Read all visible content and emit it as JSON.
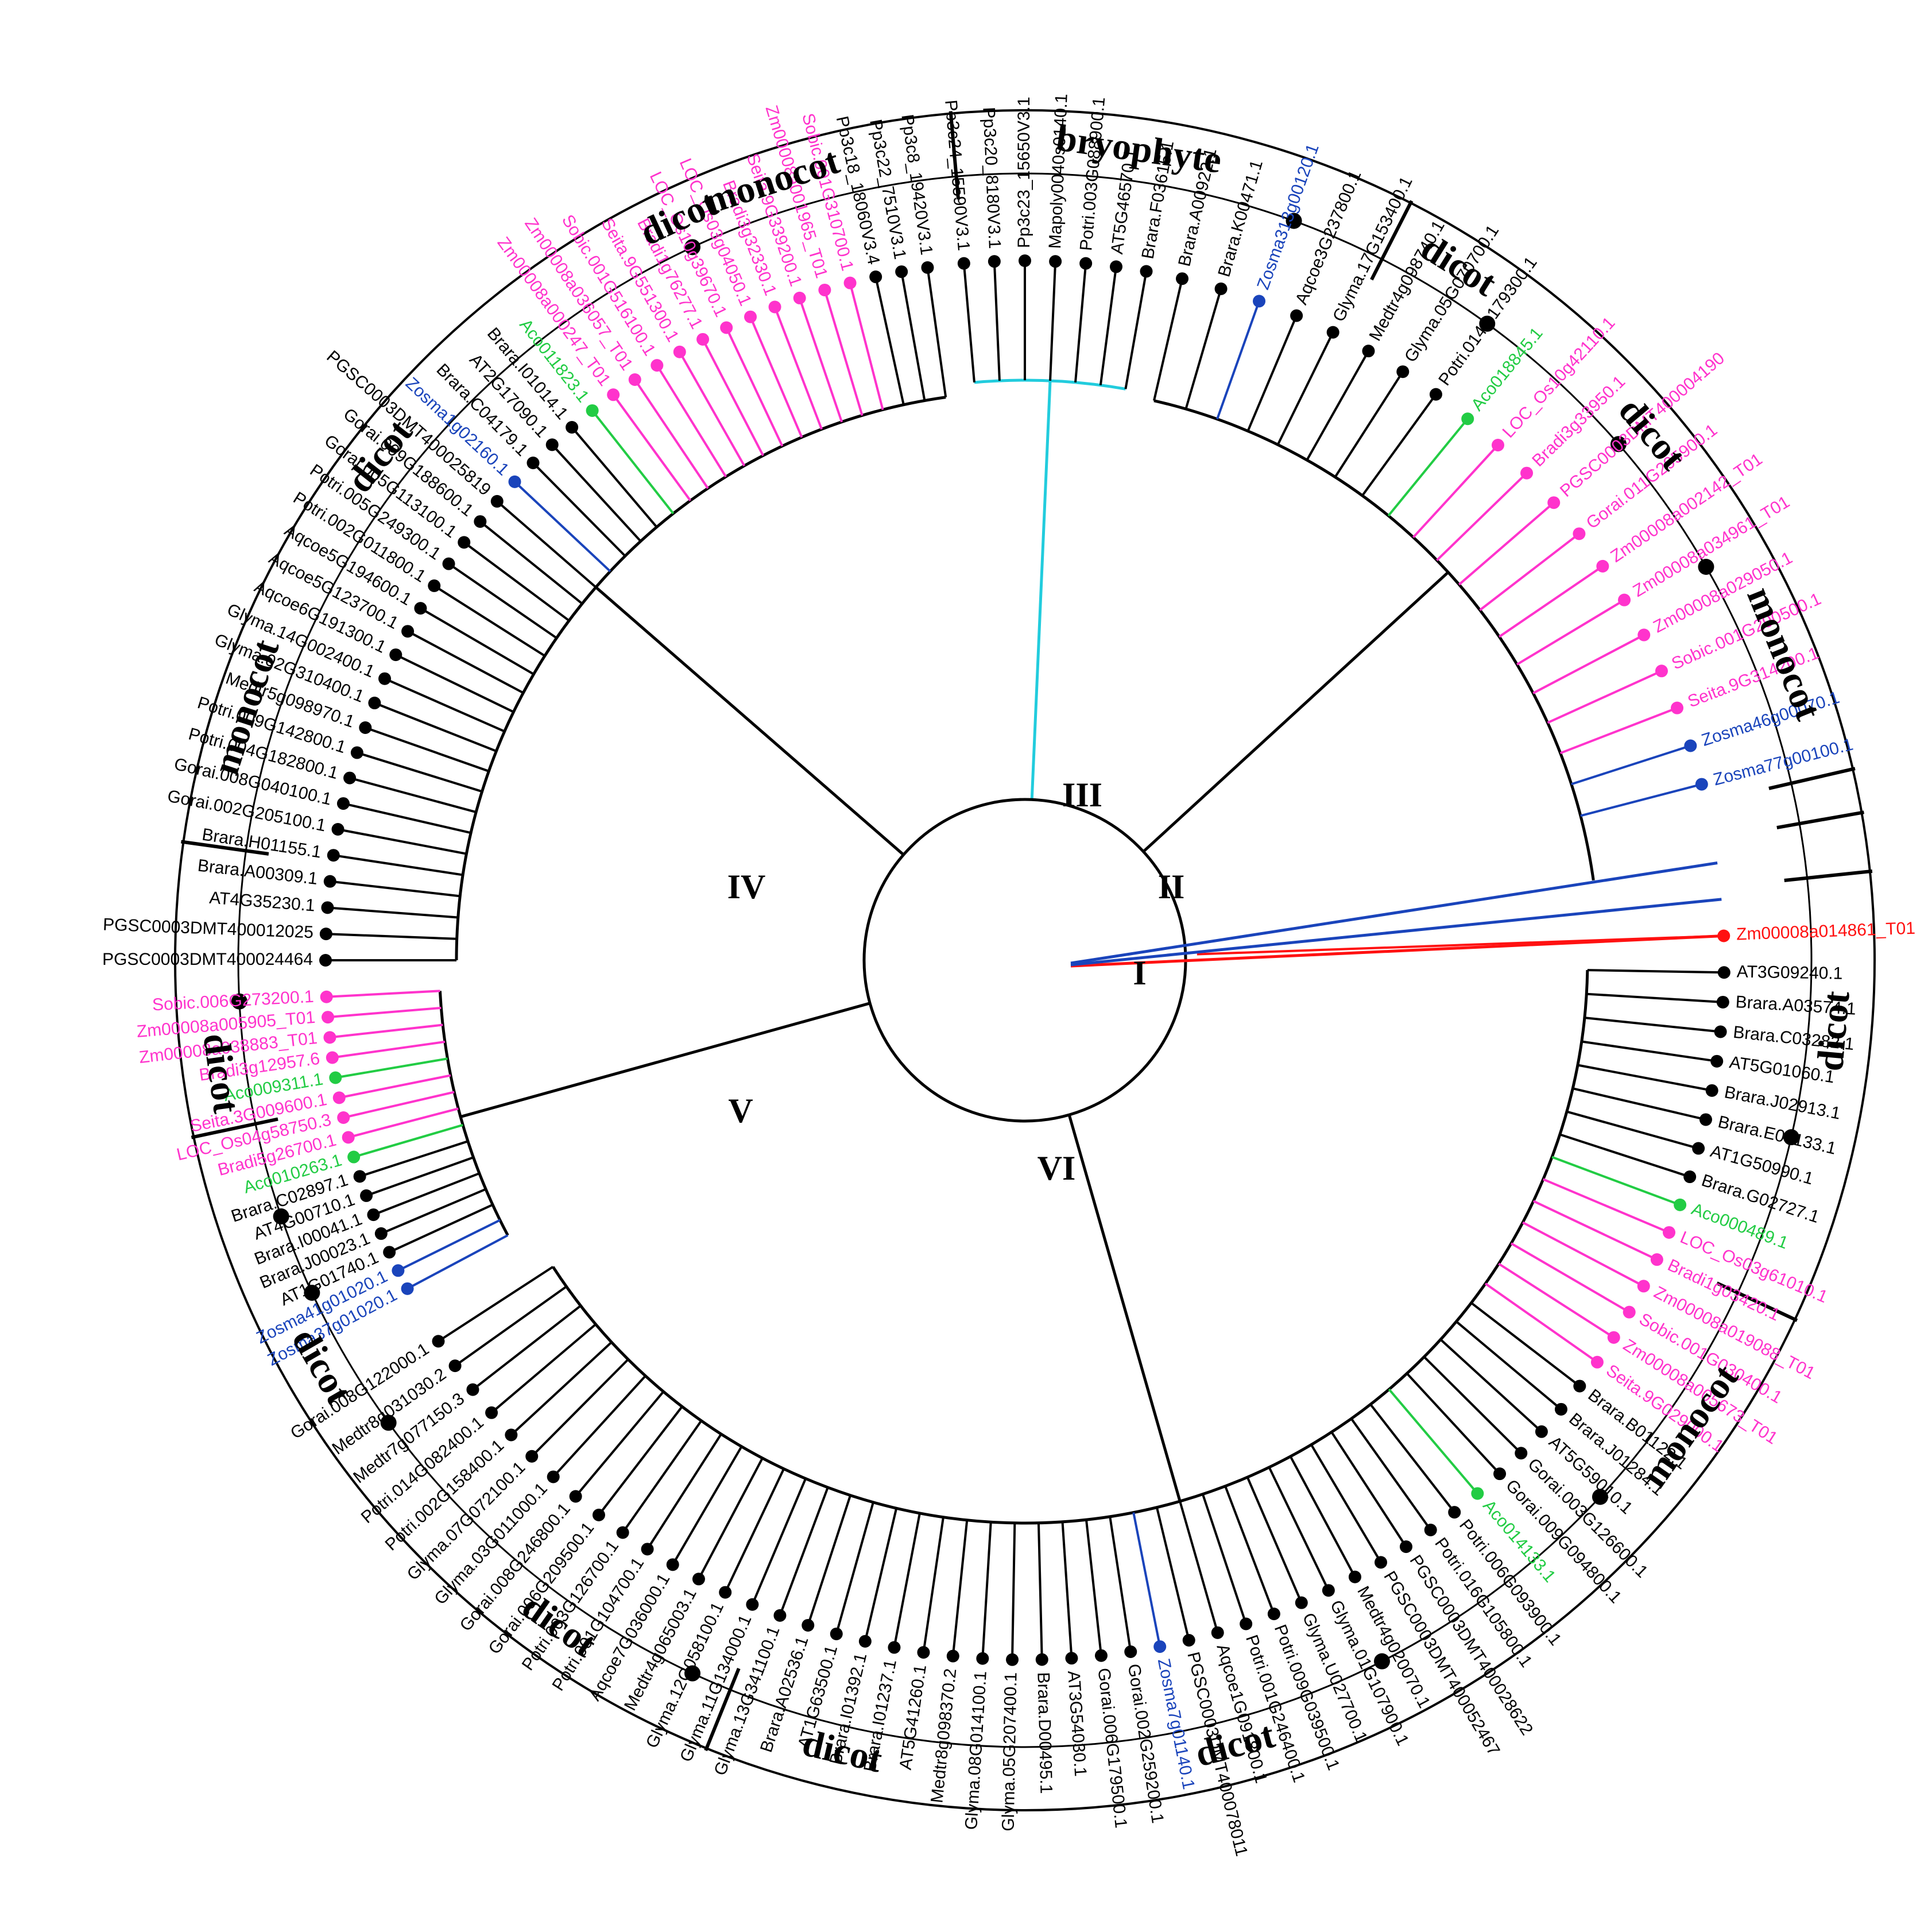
{
  "colors": {
    "black": "#000000",
    "monocot": "#ff33cc",
    "aco": "#22cc44",
    "zosma": "#1a44bb",
    "bryophyte": "#22ccdd",
    "outgroup": "#ff1111"
  },
  "clade_labels": [
    "I",
    "II",
    "III",
    "IV",
    "V",
    "VI"
  ],
  "groups": [
    {
      "label": "bryophyte"
    },
    {
      "label": "dicot"
    },
    {
      "label": "dicot"
    },
    {
      "label": "monocot"
    },
    {
      "label": "dicot"
    },
    {
      "label": "monocot"
    },
    {
      "label": "dicot"
    },
    {
      "label": "dicot"
    },
    {
      "label": "dicot"
    },
    {
      "label": "dicot"
    },
    {
      "label": "dicot"
    },
    {
      "label": "monocot"
    },
    {
      "label": "dicot"
    },
    {
      "label": "dicot"
    },
    {
      "label": "monocot"
    }
  ],
  "leaves": [
    {
      "name": "Zm00008a014861_T01",
      "color": "outgroup",
      "clade": "I"
    },
    {
      "name": "AT3G09240.1",
      "color": "black",
      "clade": "VI"
    },
    {
      "name": "Brara.A03574.1",
      "color": "black",
      "clade": "VI"
    },
    {
      "name": "Brara.C03282.1",
      "color": "black",
      "clade": "VI"
    },
    {
      "name": "AT5G01060.1",
      "color": "black",
      "clade": "VI"
    },
    {
      "name": "Brara.J02913.1",
      "color": "black",
      "clade": "VI"
    },
    {
      "name": "Brara.E03133.1",
      "color": "black",
      "clade": "VI"
    },
    {
      "name": "AT1G50990.1",
      "color": "black",
      "clade": "VI"
    },
    {
      "name": "Brara.G02727.1",
      "color": "black",
      "clade": "VI"
    },
    {
      "name": "Aco000489.1",
      "color": "aco",
      "clade": "VI"
    },
    {
      "name": "LOC_Os03g61010.1",
      "color": "monocot",
      "clade": "VI"
    },
    {
      "name": "Bradi1g03420.1",
      "color": "monocot",
      "clade": "VI"
    },
    {
      "name": "Zm00008a019088_T01",
      "color": "monocot",
      "clade": "VI"
    },
    {
      "name": "Sobic.001G030400.1",
      "color": "monocot",
      "clade": "VI"
    },
    {
      "name": "Zm00008a005673_T01",
      "color": "monocot",
      "clade": "VI"
    },
    {
      "name": "Seita.9G029000.1",
      "color": "monocot",
      "clade": "VI"
    },
    {
      "name": "Brara.B01122.1",
      "color": "black",
      "clade": "VI"
    },
    {
      "name": "Brara.J01284.1",
      "color": "black",
      "clade": "VI"
    },
    {
      "name": "AT5G59010.1",
      "color": "black",
      "clade": "VI"
    },
    {
      "name": "Gorai.003G126600.1",
      "color": "black",
      "clade": "VI"
    },
    {
      "name": "Gorai.009G094800.1",
      "color": "black",
      "clade": "VI"
    },
    {
      "name": "Aco014133.1",
      "color": "aco",
      "clade": "VI"
    },
    {
      "name": "Potri.006G093900.1",
      "color": "black",
      "clade": "VI"
    },
    {
      "name": "Potri.016G105800.1",
      "color": "black",
      "clade": "VI"
    },
    {
      "name": "PGSC0003DMT400028622",
      "color": "black",
      "clade": "VI"
    },
    {
      "name": "PGSC0003DMT400052467",
      "color": "black",
      "clade": "VI"
    },
    {
      "name": "Medtr4g020070.1",
      "color": "black",
      "clade": "VI"
    },
    {
      "name": "Glyma.01G107900.1",
      "color": "black",
      "clade": "VI"
    },
    {
      "name": "Glyma.U027700.1",
      "color": "black",
      "clade": "VI"
    },
    {
      "name": "Potri.009G039500.1",
      "color": "black",
      "clade": "VI"
    },
    {
      "name": "Potri.001G246400.1",
      "color": "black",
      "clade": "VI"
    },
    {
      "name": "Aqcoe1G091800.1",
      "color": "black",
      "clade": "VI"
    },
    {
      "name": "PGSC0003DMT400078011",
      "color": "black",
      "clade": "VI"
    },
    {
      "name": "Zosma7g01140.1",
      "color": "zosma",
      "clade": "VI"
    },
    {
      "name": "Gorai.002G259200.1",
      "color": "black",
      "clade": "VI"
    },
    {
      "name": "Gorai.006G179500.1",
      "color": "black",
      "clade": "VI"
    },
    {
      "name": "AT3G54030.1",
      "color": "black",
      "clade": "VI"
    },
    {
      "name": "Brara.D00495.1",
      "color": "black",
      "clade": "VI"
    },
    {
      "name": "Glyma.05G207400.1",
      "color": "black",
      "clade": "VI"
    },
    {
      "name": "Glyma.08G014100.1",
      "color": "black",
      "clade": "VI"
    },
    {
      "name": "Medtr8g098370.2",
      "color": "black",
      "clade": "VI"
    },
    {
      "name": "AT5G41260.1",
      "color": "black",
      "clade": "VI"
    },
    {
      "name": "Brara.I01237.1",
      "color": "black",
      "clade": "VI"
    },
    {
      "name": "Brara.I01392.1",
      "color": "black",
      "clade": "VI"
    },
    {
      "name": "AT1G63500.1",
      "color": "black",
      "clade": "VI"
    },
    {
      "name": "Brara.A02536.1",
      "color": "black",
      "clade": "VI"
    },
    {
      "name": "Glyma.13G341100.1",
      "color": "black",
      "clade": "VI"
    },
    {
      "name": "Glyma.11G134000.1",
      "color": "black",
      "clade": "VI"
    },
    {
      "name": "Glyma.12G058100.1",
      "color": "black",
      "clade": "VI"
    },
    {
      "name": "Medtr4g065003.1",
      "color": "black",
      "clade": "VI"
    },
    {
      "name": "Aqcoe7G036000.1",
      "color": "black",
      "clade": "VI"
    },
    {
      "name": "Potri.001G104700.1",
      "color": "black",
      "clade": "VI"
    },
    {
      "name": "Potri.003G126700.1",
      "color": "black",
      "clade": "VI"
    },
    {
      "name": "Gorai.006G209500.1",
      "color": "black",
      "clade": "VI"
    },
    {
      "name": "Gorai.008G246800.1",
      "color": "black",
      "clade": "VI"
    },
    {
      "name": "Glyma.03G011000.1",
      "color": "black",
      "clade": "VI"
    },
    {
      "name": "Glyma.07G072100.1",
      "color": "black",
      "clade": "VI"
    },
    {
      "name": "Potri.002G158400.1",
      "color": "black",
      "clade": "VI"
    },
    {
      "name": "Potri.014G082400.1",
      "color": "black",
      "clade": "VI"
    },
    {
      "name": "Medtr7g077150.3",
      "color": "black",
      "clade": "VI"
    },
    {
      "name": "Medtr8g031030.2",
      "color": "black",
      "clade": "VI"
    },
    {
      "name": "Gorai.008G122000.1",
      "color": "black",
      "clade": "VI"
    },
    {
      "name": "Zosma37g01020.1",
      "color": "zosma",
      "clade": "V"
    },
    {
      "name": "Zosma41g01020.1",
      "color": "zosma",
      "clade": "V"
    },
    {
      "name": "AT1G01740.1",
      "color": "black",
      "clade": "V"
    },
    {
      "name": "Brara.J00023.1",
      "color": "black",
      "clade": "V"
    },
    {
      "name": "Brara.I00041.1",
      "color": "black",
      "clade": "V"
    },
    {
      "name": "AT4G00710.1",
      "color": "black",
      "clade": "V"
    },
    {
      "name": "Brara.C02897.1",
      "color": "black",
      "clade": "V"
    },
    {
      "name": "Aco010263.1",
      "color": "aco",
      "clade": "V"
    },
    {
      "name": "Bradi5g26700.1",
      "color": "monocot",
      "clade": "V"
    },
    {
      "name": "LOC_Os04g58750.3",
      "color": "monocot",
      "clade": "V"
    },
    {
      "name": "Seita.3G009600.1",
      "color": "monocot",
      "clade": "V"
    },
    {
      "name": "Aco009311.1",
      "color": "aco",
      "clade": "V"
    },
    {
      "name": "Bradi3g12957.6",
      "color": "monocot",
      "clade": "V"
    },
    {
      "name": "Zm00008a038883_T01",
      "color": "monocot",
      "clade": "V"
    },
    {
      "name": "Zm00008a005905_T01",
      "color": "monocot",
      "clade": "V"
    },
    {
      "name": "Sobic.006G273200.1",
      "color": "monocot",
      "clade": "V"
    },
    {
      "name": "PGSC0003DMT400024464",
      "color": "black",
      "clade": "IV"
    },
    {
      "name": "PGSC0003DMT400012025",
      "color": "black",
      "clade": "IV"
    },
    {
      "name": "AT4G35230.1",
      "color": "black",
      "clade": "IV"
    },
    {
      "name": "Brara.A00309.1",
      "color": "black",
      "clade": "IV"
    },
    {
      "name": "Brara.H01155.1",
      "color": "black",
      "clade": "IV"
    },
    {
      "name": "Gorai.002G205100.1",
      "color": "black",
      "clade": "IV"
    },
    {
      "name": "Gorai.008G040100.1",
      "color": "black",
      "clade": "IV"
    },
    {
      "name": "Potri.004G182800.1",
      "color": "black",
      "clade": "IV"
    },
    {
      "name": "Potri.009G142800.1",
      "color": "black",
      "clade": "IV"
    },
    {
      "name": "Medtr5g098970.1",
      "color": "black",
      "clade": "IV"
    },
    {
      "name": "Glyma.02G310400.1",
      "color": "black",
      "clade": "IV"
    },
    {
      "name": "Glyma.14G002400.1",
      "color": "black",
      "clade": "IV"
    },
    {
      "name": "Aqcoe6G191300.1",
      "color": "black",
      "clade": "IV"
    },
    {
      "name": "Aqcoe5G123700.1",
      "color": "black",
      "clade": "IV"
    },
    {
      "name": "Aqcoe5G194600.1",
      "color": "black",
      "clade": "IV"
    },
    {
      "name": "Potri.002G011800.1",
      "color": "black",
      "clade": "IV"
    },
    {
      "name": "Potri.005G249300.1",
      "color": "black",
      "clade": "IV"
    },
    {
      "name": "Gorai.005G113100.1",
      "color": "black",
      "clade": "IV"
    },
    {
      "name": "Gorai.009G188600.1",
      "color": "black",
      "clade": "IV"
    },
    {
      "name": "PGSC0003DMT400025819",
      "color": "black",
      "clade": "IV"
    },
    {
      "name": "Zosma1g02160.1",
      "color": "zosma",
      "clade": "IV"
    },
    {
      "name": "Brara.C04179.1",
      "color": "black",
      "clade": "IV"
    },
    {
      "name": "AT2G17090.1",
      "color": "black",
      "clade": "IV"
    },
    {
      "name": "Brara.I01014.1",
      "color": "black",
      "clade": "IV"
    },
    {
      "name": "Aco011823.1",
      "color": "aco",
      "clade": "IV"
    },
    {
      "name": "Zm00008a000247_T01",
      "color": "monocot",
      "clade": "IV"
    },
    {
      "name": "Zm00008a036057_T01",
      "color": "monocot",
      "clade": "IV"
    },
    {
      "name": "Sobic.001G516100.1",
      "color": "monocot",
      "clade": "IV"
    },
    {
      "name": "Seita.9G551300.1",
      "color": "monocot",
      "clade": "IV"
    },
    {
      "name": "Bradi1g76277.1",
      "color": "monocot",
      "clade": "IV"
    },
    {
      "name": "LOC_Os10g39670.1",
      "color": "monocot",
      "clade": "IV"
    },
    {
      "name": "LOC_Os03g04050.1",
      "color": "monocot",
      "clade": "IV"
    },
    {
      "name": "Bradi3g32330.1",
      "color": "monocot",
      "clade": "IV"
    },
    {
      "name": "Seita.9G339200.1",
      "color": "monocot",
      "clade": "IV"
    },
    {
      "name": "Zm00008a001965_T01",
      "color": "monocot",
      "clade": "IV"
    },
    {
      "name": "Sobic.001G310700.1",
      "color": "monocot",
      "clade": "IV"
    },
    {
      "name": "Pp3c18_18060V3.4",
      "color": "black",
      "clade": "III"
    },
    {
      "name": "Pp3c22_7510V3.1",
      "color": "black",
      "clade": "III"
    },
    {
      "name": "Pp3c8_19420V3.1",
      "color": "black",
      "clade": "III"
    },
    {
      "name": "Pp3c24_15590V3.1",
      "color": "black",
      "clade": "III"
    },
    {
      "name": "Pp3c20_8180V3.1",
      "color": "black",
      "clade": "III"
    },
    {
      "name": "Pp3c23_15650V3.1",
      "color": "black",
      "clade": "III"
    },
    {
      "name": "Mapoly0040s0140.1",
      "color": "black",
      "clade": "III"
    },
    {
      "name": "Potri.003G088900.1",
      "color": "black",
      "clade": "II"
    },
    {
      "name": "AT5G46570.1",
      "color": "black",
      "clade": "II"
    },
    {
      "name": "Brara.F03615.1",
      "color": "black",
      "clade": "II"
    },
    {
      "name": "Brara.A00922.1",
      "color": "black",
      "clade": "II"
    },
    {
      "name": "Brara.K00471.1",
      "color": "black",
      "clade": "II"
    },
    {
      "name": "Zosma313g00120.1",
      "color": "zosma",
      "clade": "II"
    },
    {
      "name": "Aqcoe3G237800.1",
      "color": "black",
      "clade": "II"
    },
    {
      "name": "Glyma.17G153400.1",
      "color": "black",
      "clade": "II"
    },
    {
      "name": "Medtr4g098740.1",
      "color": "black",
      "clade": "II"
    },
    {
      "name": "Glyma.05G070700.1",
      "color": "black",
      "clade": "II"
    },
    {
      "name": "Potri.014G179300.1",
      "color": "black",
      "clade": "II"
    },
    {
      "name": "Aco018845.1",
      "color": "aco",
      "clade": "II"
    },
    {
      "name": "LOC_Os10g42110.1",
      "color": "monocot",
      "clade": "II"
    },
    {
      "name": "Bradi3g33950.1",
      "color": "monocot",
      "clade": "II"
    },
    {
      "name": "PGSC0003DMT400004190",
      "color": "monocot",
      "clade": "II"
    },
    {
      "name": "Gorai.011G295900.1",
      "color": "monocot",
      "clade": "II"
    },
    {
      "name": "Zm00008a002142_T01",
      "color": "monocot",
      "clade": "II"
    },
    {
      "name": "Zm00008a034961_T01",
      "color": "monocot",
      "clade": "II"
    },
    {
      "name": "Zm00008a029050.1",
      "color": "monocot",
      "clade": "II"
    },
    {
      "name": "Sobic.001G290500.1",
      "color": "monocot",
      "clade": "II"
    },
    {
      "name": "Seita.9G314200.1",
      "color": "monocot",
      "clade": "II"
    },
    {
      "name": "Zosma46g00070.1",
      "color": "zosma",
      "clade": "II"
    },
    {
      "name": "Zosma77g00100.1",
      "color": "zosma",
      "clade": "II"
    }
  ]
}
